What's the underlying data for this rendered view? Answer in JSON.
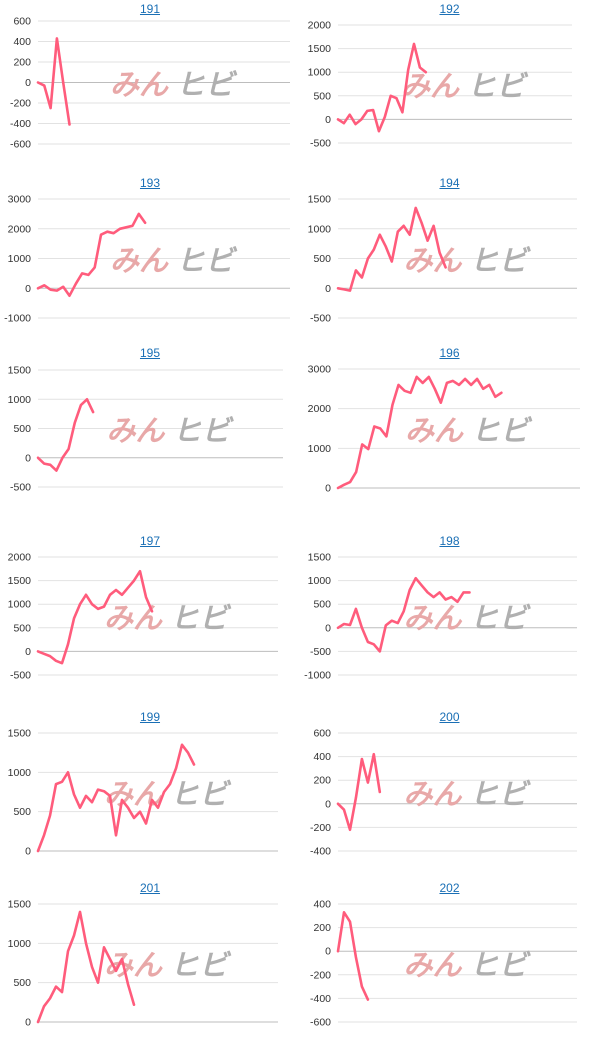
{
  "colors": {
    "line": "#ff5c7c",
    "link": "#1a6fb5",
    "watermark_left": "#e8a8a8",
    "watermark_right": "#b0b0b0"
  },
  "watermark": {
    "left": "みん",
    "right": "ヒビ"
  },
  "chart_data": [
    {
      "type": "line",
      "title": "191",
      "yticks": [
        "600",
        "400",
        "200",
        "0",
        "-200",
        "-400",
        "-600"
      ],
      "ylim": [
        -600,
        600
      ],
      "xmax": 40,
      "values": [
        0,
        -30,
        -250,
        430,
        0,
        -410
      ]
    },
    {
      "type": "line",
      "title": "192",
      "yticks": [
        "2000",
        "1500",
        "1000",
        "500",
        "0",
        "-500"
      ],
      "ylim": [
        -500,
        2000
      ],
      "xmax": 40,
      "values": [
        0,
        -80,
        100,
        -100,
        0,
        180,
        200,
        -250,
        50,
        500,
        450,
        150,
        1050,
        1600,
        1100,
        1000
      ]
    },
    {
      "type": "line",
      "title": "193",
      "yticks": [
        "3000",
        "2000",
        "1000",
        "0",
        "-1000"
      ],
      "ylim": [
        -1000,
        3000
      ],
      "xmax": 40,
      "values": [
        0,
        100,
        -50,
        -80,
        50,
        -250,
        150,
        500,
        450,
        700,
        1800,
        1900,
        1850,
        2000,
        2050,
        2100,
        2500,
        2200
      ]
    },
    {
      "type": "line",
      "title": "194",
      "yticks": [
        "1500",
        "1000",
        "500",
        "0",
        "-500"
      ],
      "ylim": [
        -500,
        1500
      ],
      "xmax": 40,
      "values": [
        0,
        -20,
        -40,
        300,
        180,
        500,
        650,
        900,
        700,
        450,
        950,
        1050,
        900,
        1350,
        1100,
        800,
        1050,
        600,
        350
      ]
    },
    {
      "type": "line",
      "title": "195",
      "yticks": [
        "1500",
        "1000",
        "500",
        "0",
        "-500"
      ],
      "ylim": [
        -500,
        1500
      ],
      "xmax": 40,
      "values": [
        0,
        -100,
        -120,
        -220,
        0,
        150,
        600,
        900,
        1000,
        780
      ]
    },
    {
      "type": "line",
      "title": "196",
      "yticks": [
        "3000",
        "2000",
        "1000",
        "0"
      ],
      "ylim": [
        0,
        3000
      ],
      "xmax": 40,
      "values": [
        0,
        80,
        150,
        400,
        1100,
        980,
        1550,
        1500,
        1300,
        2100,
        2600,
        2450,
        2400,
        2800,
        2650,
        2800,
        2500,
        2150,
        2650,
        2700,
        2600,
        2750,
        2600,
        2750,
        2500,
        2600,
        2300,
        2400
      ]
    },
    {
      "type": "line",
      "title": "197",
      "yticks": [
        "2000",
        "1500",
        "1000",
        "500",
        "0",
        "-500"
      ],
      "ylim": [
        -500,
        2000
      ],
      "xmax": 40,
      "values": [
        0,
        -50,
        -100,
        -200,
        -250,
        150,
        700,
        1000,
        1200,
        1000,
        900,
        950,
        1200,
        1300,
        1200,
        1350,
        1500,
        1700,
        1150,
        850
      ]
    },
    {
      "type": "line",
      "title": "198",
      "yticks": [
        "1500",
        "1000",
        "500",
        "0",
        "-500",
        "-1000"
      ],
      "ylim": [
        -1000,
        1500
      ],
      "xmax": 40,
      "values": [
        0,
        80,
        60,
        400,
        0,
        -300,
        -350,
        -500,
        50,
        150,
        100,
        350,
        800,
        1050,
        900,
        750,
        650,
        750,
        600,
        650,
        550,
        750,
        750
      ]
    },
    {
      "type": "line",
      "title": "199",
      "yticks": [
        "1500",
        "1000",
        "500",
        "0"
      ],
      "ylim": [
        0,
        1500
      ],
      "xmax": 40,
      "values": [
        0,
        200,
        450,
        850,
        880,
        1000,
        720,
        550,
        700,
        620,
        780,
        760,
        700,
        200,
        650,
        550,
        420,
        500,
        350,
        650,
        550,
        750,
        850,
        1050,
        1350,
        1250,
        1100
      ]
    },
    {
      "type": "line",
      "title": "200",
      "yticks": [
        "600",
        "400",
        "200",
        "0",
        "-200",
        "-400"
      ],
      "ylim": [
        -400,
        600
      ],
      "xmax": 40,
      "values": [
        0,
        -50,
        -220,
        50,
        380,
        180,
        420,
        100
      ]
    },
    {
      "type": "line",
      "title": "201",
      "yticks": [
        "1500",
        "1000",
        "500",
        "0"
      ],
      "ylim": [
        0,
        1500
      ],
      "xmax": 40,
      "values": [
        0,
        200,
        300,
        450,
        380,
        900,
        1100,
        1400,
        1000,
        700,
        500,
        950,
        800,
        650,
        800,
        480,
        220
      ]
    },
    {
      "type": "line",
      "title": "202",
      "yticks": [
        "400",
        "200",
        "0",
        "-200",
        "-400",
        "-600"
      ],
      "ylim": [
        -600,
        400
      ],
      "xmax": 40,
      "values": [
        0,
        330,
        250,
        -50,
        -300,
        -410
      ]
    }
  ]
}
